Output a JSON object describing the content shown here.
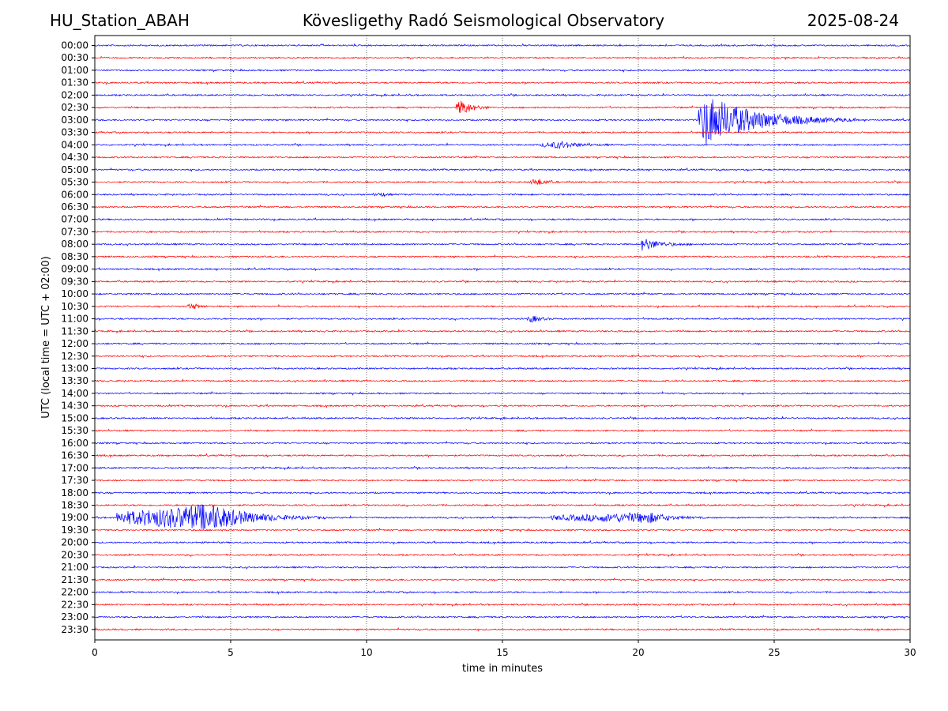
{
  "header": {
    "station": "HU_Station_ABAH",
    "observatory": "Kövesligethy Radó Seismological Observatory",
    "date": "2025-08-24"
  },
  "chart_data": {
    "type": "line",
    "xlabel": "time in minutes",
    "ylabel": "UTC (local time = UTC + 02:00)",
    "xlim": [
      0,
      30
    ],
    "x_ticks": [
      "0",
      "5",
      "10",
      "15",
      "20",
      "25",
      "30"
    ],
    "grid": "vertical dotted lines at 5-minute intervals",
    "row_labels": [
      "00:00",
      "00:30",
      "01:00",
      "01:30",
      "02:00",
      "02:30",
      "03:00",
      "03:30",
      "04:00",
      "04:30",
      "05:00",
      "05:30",
      "06:00",
      "06:30",
      "07:00",
      "07:30",
      "08:00",
      "08:30",
      "09:00",
      "09:30",
      "10:00",
      "10:30",
      "11:00",
      "11:30",
      "12:00",
      "12:30",
      "13:00",
      "13:30",
      "14:00",
      "14:30",
      "15:00",
      "15:30",
      "16:00",
      "16:30",
      "17:00",
      "17:30",
      "18:00",
      "18:30",
      "19:00",
      "19:30",
      "20:00",
      "20:30",
      "21:00",
      "21:30",
      "22:00",
      "22:30",
      "23:00",
      "23:30"
    ],
    "colors": {
      "on_the_hour": "#0000ff",
      "half_hour": "#ff0000"
    },
    "events": [
      {
        "row": "02:30",
        "start": 13.3,
        "peak": 13.5,
        "end": 14.6,
        "amplitude": 10
      },
      {
        "row": "03:00",
        "start": 22.2,
        "peak": 22.5,
        "end": 28.0,
        "amplitude": 32
      },
      {
        "row": "04:00",
        "start": 16.4,
        "peak": 17.2,
        "end": 19.0,
        "amplitude": 4
      },
      {
        "row": "05:30",
        "start": 16.0,
        "peak": 16.3,
        "end": 17.2,
        "amplitude": 4
      },
      {
        "row": "06:00",
        "start": 10.3,
        "peak": 10.6,
        "end": 11.0,
        "amplitude": 2
      },
      {
        "row": "08:00",
        "start": 20.1,
        "peak": 20.15,
        "end": 22.0,
        "amplitude": 8
      },
      {
        "row": "10:30",
        "start": 3.4,
        "peak": 3.6,
        "end": 4.2,
        "amplitude": 4
      },
      {
        "row": "11:00",
        "start": 15.9,
        "peak": 16.1,
        "end": 17.0,
        "amplitude": 4
      },
      {
        "row": "19:00",
        "start": 0.8,
        "peak": 4.3,
        "end": 8.5,
        "amplitude": 17
      },
      {
        "row": "19:00",
        "start": 16.8,
        "peak": 20.5,
        "end": 22.5,
        "amplitude": 6
      }
    ]
  }
}
